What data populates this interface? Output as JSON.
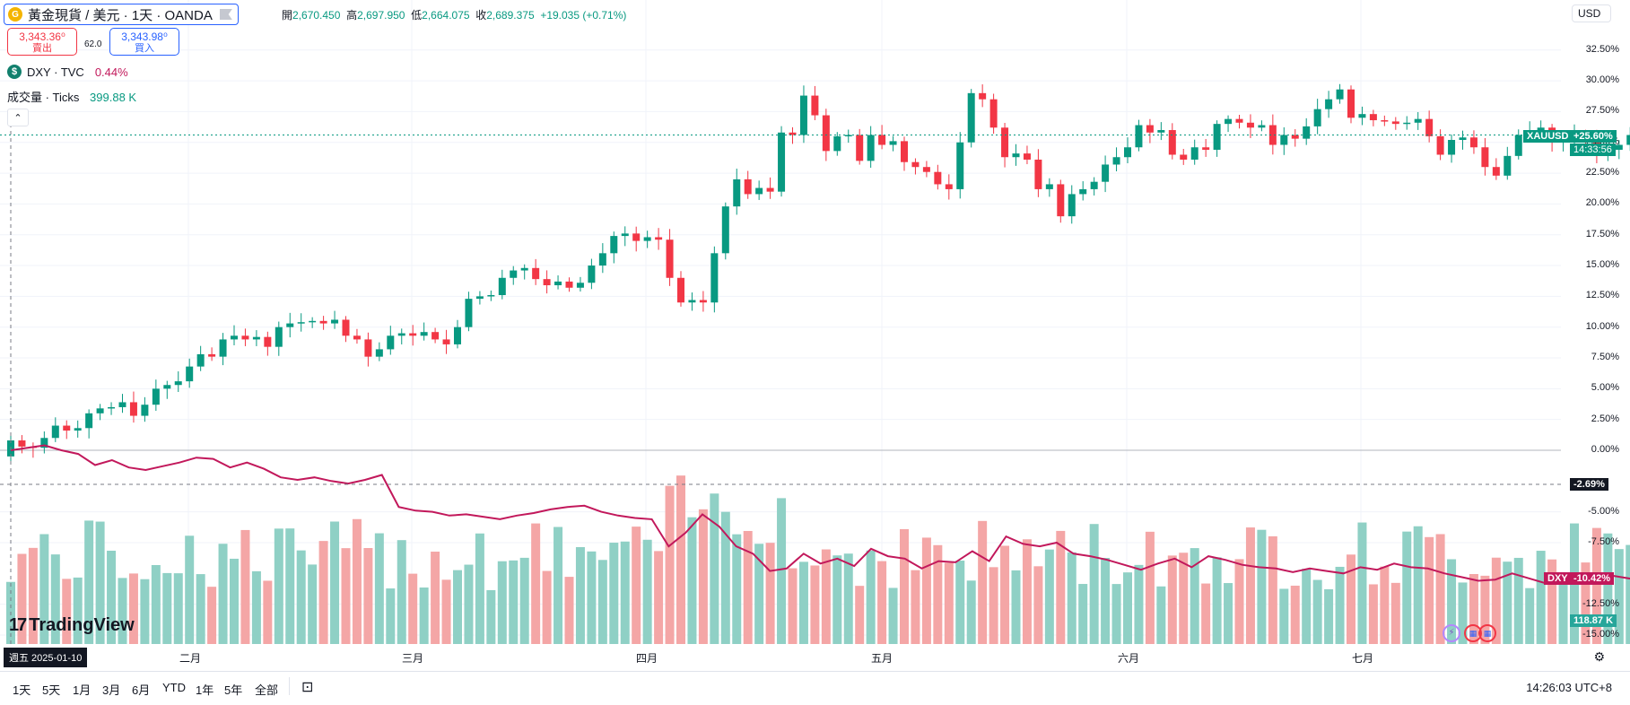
{
  "header": {
    "symbol_label": "黃金現貨 / 美元 · 1天 · OANDA",
    "ohlc": {
      "open_label": "開",
      "open": "2,670.450",
      "high_label": "高",
      "high": "2,697.950",
      "low_label": "低",
      "low": "2,664.075",
      "close_label": "收",
      "close": "2,689.375",
      "change": "+19.035 (+0.71%)"
    }
  },
  "trade": {
    "sell_price": "3,343.36⁰",
    "sell_label": "賣出",
    "spread": "62.0",
    "buy_price": "3,343.98⁰",
    "buy_label": "買入"
  },
  "indicators": {
    "dxy_name": "DXY · TVC",
    "dxy_value": "0.44%",
    "volume_name": "成交量 · Ticks",
    "volume_value": "399.88 K"
  },
  "currency_button": "USD",
  "price_axis": [
    "32.50%",
    "30.00%",
    "27.50%",
    "25.00%",
    "22.50%",
    "20.00%",
    "17.50%",
    "15.00%",
    "12.50%",
    "10.00%",
    "7.50%",
    "5.00%",
    "2.50%",
    "0.00%",
    "-5.00%",
    "-7.50%",
    "-12.50%",
    "-15.00%"
  ],
  "tags": {
    "xauusd_symbol": "XAUUSD",
    "xauusd_pct": "+25.60%",
    "xauusd_countdown": "14:33:56",
    "crosshair_pct": "-2.69%",
    "dxy_symbol": "DXY",
    "dxy_pct": "-10.42%",
    "volume": "118.87 K"
  },
  "time_axis": {
    "cursor_date": "週五 2025-01-10",
    "months": [
      "二月",
      "三月",
      "四月",
      "五月",
      "六月",
      "七月"
    ]
  },
  "logo": "TradingView",
  "timeframes": [
    "1天",
    "5天",
    "1月",
    "3月",
    "6月",
    "YTD",
    "1年",
    "5年",
    "全部"
  ],
  "clock": "14:26:03 UTC+8",
  "colors": {
    "up": "#089981",
    "down": "#f23645",
    "vol_up": "#8fd0c5",
    "vol_down": "#f4a6a6",
    "dxy_line": "#c2185b",
    "accent": "#2962ff"
  },
  "icons": [
    "gold-coin-icon",
    "flag-icon",
    "dollar-icon",
    "chevron-up-icon",
    "settings-icon",
    "compare-icon",
    "event-icon"
  ],
  "chart_data": {
    "type": "candlestick",
    "y_unit": "% change from 2025-01-10 close",
    "candles": [
      {
        "o": -0.5,
        "c": 0.8
      },
      {
        "o": 0.8,
        "c": 0.3
      },
      {
        "o": 0.3,
        "c": 0.2
      },
      {
        "o": 0.2,
        "c": 1.0
      },
      {
        "o": 1.0,
        "c": 2.0
      },
      {
        "o": 2.0,
        "c": 1.6
      },
      {
        "o": 1.6,
        "c": 1.8
      },
      {
        "o": 1.8,
        "c": 3.0
      },
      {
        "o": 3.0,
        "c": 3.4
      },
      {
        "o": 3.4,
        "c": 3.5
      },
      {
        "o": 3.5,
        "c": 3.9
      },
      {
        "o": 3.9,
        "c": 2.8
      },
      {
        "o": 2.8,
        "c": 3.7
      },
      {
        "o": 3.7,
        "c": 5.0
      },
      {
        "o": 5.0,
        "c": 5.3
      },
      {
        "o": 5.3,
        "c": 5.6
      },
      {
        "o": 5.6,
        "c": 6.8
      },
      {
        "o": 6.8,
        "c": 7.8
      },
      {
        "o": 7.8,
        "c": 7.6
      },
      {
        "o": 7.6,
        "c": 9.0
      },
      {
        "o": 9.0,
        "c": 9.3
      },
      {
        "o": 9.3,
        "c": 9.0
      },
      {
        "o": 9.0,
        "c": 9.2
      },
      {
        "o": 9.2,
        "c": 8.4
      },
      {
        "o": 8.4,
        "c": 10.0
      },
      {
        "o": 10.0,
        "c": 10.3
      },
      {
        "o": 10.3,
        "c": 10.4
      },
      {
        "o": 10.4,
        "c": 10.5
      },
      {
        "o": 10.5,
        "c": 10.3
      },
      {
        "o": 10.3,
        "c": 10.6
      },
      {
        "o": 10.6,
        "c": 9.3
      },
      {
        "o": 9.3,
        "c": 9.0
      },
      {
        "o": 9.0,
        "c": 7.6
      },
      {
        "o": 7.6,
        "c": 8.2
      },
      {
        "o": 8.2,
        "c": 9.3
      },
      {
        "o": 9.3,
        "c": 9.5
      },
      {
        "o": 9.5,
        "c": 9.3
      },
      {
        "o": 9.3,
        "c": 9.6
      },
      {
        "o": 9.6,
        "c": 9.0
      },
      {
        "o": 9.0,
        "c": 8.6
      },
      {
        "o": 8.6,
        "c": 10.0
      },
      {
        "o": 10.0,
        "c": 12.3
      },
      {
        "o": 12.3,
        "c": 12.5
      },
      {
        "o": 12.5,
        "c": 12.6
      },
      {
        "o": 12.6,
        "c": 14.0
      },
      {
        "o": 14.0,
        "c": 14.6
      },
      {
        "o": 14.6,
        "c": 14.8
      },
      {
        "o": 14.8,
        "c": 13.9
      },
      {
        "o": 13.9,
        "c": 13.4
      },
      {
        "o": 13.4,
        "c": 13.7
      },
      {
        "o": 13.7,
        "c": 13.2
      },
      {
        "o": 13.2,
        "c": 13.6
      },
      {
        "o": 13.6,
        "c": 15.0
      },
      {
        "o": 15.0,
        "c": 16.0
      },
      {
        "o": 16.0,
        "c": 17.4
      },
      {
        "o": 17.4,
        "c": 17.6
      },
      {
        "o": 17.6,
        "c": 17.0
      },
      {
        "o": 17.0,
        "c": 17.3
      },
      {
        "o": 17.3,
        "c": 17.1
      },
      {
        "o": 17.1,
        "c": 14.0
      },
      {
        "o": 14.0,
        "c": 12.0
      },
      {
        "o": 12.0,
        "c": 12.2
      },
      {
        "o": 12.2,
        "c": 12.0
      },
      {
        "o": 12.0,
        "c": 16.0
      },
      {
        "o": 16.0,
        "c": 19.8
      },
      {
        "o": 19.8,
        "c": 22.0
      },
      {
        "o": 22.0,
        "c": 20.8
      },
      {
        "o": 20.8,
        "c": 21.3
      },
      {
        "o": 21.3,
        "c": 21.0
      },
      {
        "o": 21.0,
        "c": 25.8
      },
      {
        "o": 25.8,
        "c": 25.6
      },
      {
        "o": 25.6,
        "c": 28.8
      },
      {
        "o": 28.8,
        "c": 27.2
      },
      {
        "o": 27.2,
        "c": 24.3
      },
      {
        "o": 24.3,
        "c": 25.5
      },
      {
        "o": 25.5,
        "c": 25.6
      },
      {
        "o": 25.6,
        "c": 23.5
      },
      {
        "o": 23.5,
        "c": 25.6
      },
      {
        "o": 25.6,
        "c": 24.8
      },
      {
        "o": 24.8,
        "c": 25.1
      },
      {
        "o": 25.1,
        "c": 23.4
      },
      {
        "o": 23.4,
        "c": 23.0
      },
      {
        "o": 23.0,
        "c": 22.6
      },
      {
        "o": 22.6,
        "c": 21.6
      },
      {
        "o": 21.6,
        "c": 21.2
      },
      {
        "o": 21.2,
        "c": 25.0
      },
      {
        "o": 25.0,
        "c": 29.0
      },
      {
        "o": 29.0,
        "c": 28.5
      },
      {
        "o": 28.5,
        "c": 26.2
      },
      {
        "o": 26.2,
        "c": 23.8
      },
      {
        "o": 23.8,
        "c": 24.1
      },
      {
        "o": 24.1,
        "c": 23.6
      },
      {
        "o": 23.6,
        "c": 21.2
      },
      {
        "o": 21.2,
        "c": 21.6
      },
      {
        "o": 21.6,
        "c": 19.0
      },
      {
        "o": 19.0,
        "c": 20.8
      },
      {
        "o": 20.8,
        "c": 21.2
      },
      {
        "o": 21.2,
        "c": 21.8
      },
      {
        "o": 21.8,
        "c": 23.2
      },
      {
        "o": 23.2,
        "c": 23.8
      },
      {
        "o": 23.8,
        "c": 24.6
      },
      {
        "o": 24.6,
        "c": 26.4
      },
      {
        "o": 26.4,
        "c": 25.8
      },
      {
        "o": 25.8,
        "c": 26.0
      },
      {
        "o": 26.0,
        "c": 24.0
      },
      {
        "o": 24.0,
        "c": 23.6
      },
      {
        "o": 23.6,
        "c": 24.6
      },
      {
        "o": 24.6,
        "c": 24.4
      },
      {
        "o": 24.4,
        "c": 26.5
      },
      {
        "o": 26.5,
        "c": 26.9
      },
      {
        "o": 26.9,
        "c": 26.6
      },
      {
        "o": 26.6,
        "c": 26.2
      },
      {
        "o": 26.2,
        "c": 26.4
      },
      {
        "o": 26.4,
        "c": 24.8
      },
      {
        "o": 24.8,
        "c": 25.6
      },
      {
        "o": 25.6,
        "c": 25.3
      },
      {
        "o": 25.3,
        "c": 26.3
      },
      {
        "o": 26.3,
        "c": 27.7
      },
      {
        "o": 27.7,
        "c": 28.5
      },
      {
        "o": 28.5,
        "c": 29.3
      },
      {
        "o": 29.3,
        "c": 27.0
      },
      {
        "o": 27.0,
        "c": 27.3
      },
      {
        "o": 27.3,
        "c": 26.8
      },
      {
        "o": 26.8,
        "c": 26.7
      },
      {
        "o": 26.7,
        "c": 26.5
      },
      {
        "o": 26.5,
        "c": 26.6
      },
      {
        "o": 26.6,
        "c": 26.9
      },
      {
        "o": 26.9,
        "c": 25.5
      },
      {
        "o": 25.5,
        "c": 24.0
      },
      {
        "o": 24.0,
        "c": 25.2
      },
      {
        "o": 25.2,
        "c": 25.4
      },
      {
        "o": 25.4,
        "c": 24.6
      },
      {
        "o": 24.6,
        "c": 23.0
      },
      {
        "o": 23.0,
        "c": 22.3
      },
      {
        "o": 22.3,
        "c": 23.9
      },
      {
        "o": 23.9,
        "c": 25.6
      },
      {
        "o": 25.6,
        "c": 26.0
      },
      {
        "o": 26.0,
        "c": 26.2
      },
      {
        "o": 26.2,
        "c": 25.0
      },
      {
        "o": 25.0,
        "c": 25.3
      },
      {
        "o": 25.3,
        "c": 25.6
      },
      {
        "o": 25.6,
        "c": 25.2
      },
      {
        "o": 25.2,
        "c": 24.0
      },
      {
        "o": 24.0,
        "c": 24.4
      },
      {
        "o": 24.4,
        "c": 24.8
      },
      {
        "o": 24.8,
        "c": 25.6
      }
    ],
    "dxy": [
      0.0,
      0.2,
      0.4,
      0.0,
      -0.3,
      -1.2,
      -0.8,
      -1.4,
      -1.6,
      -1.3,
      -1.0,
      -0.6,
      -0.7,
      -1.4,
      -1.0,
      -1.5,
      -2.2,
      -2.4,
      -2.2,
      -2.5,
      -2.7,
      -2.4,
      -2.0,
      -4.6,
      -4.9,
      -5.0,
      -5.3,
      -5.2,
      -5.4,
      -5.6,
      -5.3,
      -5.1,
      -4.8,
      -4.6,
      -4.5,
      -5.0,
      -5.3,
      -5.5,
      -5.6,
      -7.8,
      -6.7,
      -5.2,
      -6.2,
      -7.8,
      -8.4,
      -9.8,
      -9.6,
      -8.4,
      -9.2,
      -8.8,
      -9.4,
      -8.0,
      -8.6,
      -8.8,
      -9.6,
      -9.0,
      -9.1,
      -8.2,
      -9.0,
      -7.0,
      -7.6,
      -7.8,
      -7.5,
      -8.4,
      -8.6,
      -8.9,
      -9.3,
      -9.7,
      -9.2,
      -8.8,
      -9.5,
      -8.6,
      -8.9,
      -9.3,
      -9.5,
      -9.6,
      -9.9,
      -9.6,
      -9.8,
      -10.0,
      -9.5,
      -9.7,
      -9.2,
      -9.5,
      -9.6,
      -10.0,
      -10.3,
      -10.6,
      -10.5,
      -10.0,
      -10.4,
      -10.8,
      -10.6,
      -10.1,
      -10.0,
      -10.2,
      -10.42
    ]
  }
}
